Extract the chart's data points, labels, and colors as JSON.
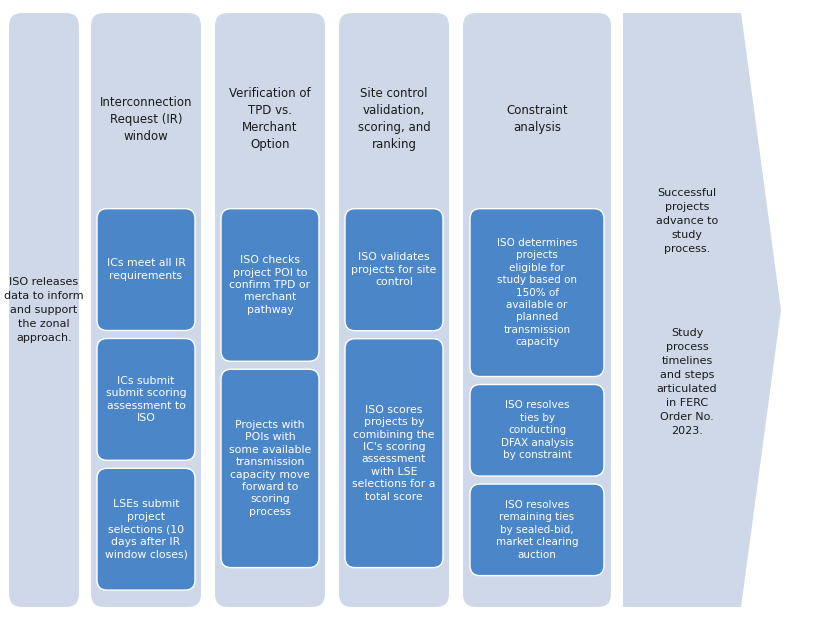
{
  "bg_color": "#ffffff",
  "col_bg_color": "#cfd8e8",
  "box_color": "#4a86c8",
  "arrow_color": "#cfd8e8",
  "text_dark": "#1a1a1a",
  "text_white": "#ffffff",
  "left_text": "ISO releases\ndata to inform\nand support\nthe zonal\napproach.",
  "right_text_line1": "Successful\nprojects\nadvance to\nstudy\nprocess.",
  "right_text_line2": "Study\nprocess\ntimelines\nand steps\narticulated\nin FERC\nOrder No.\n2023.",
  "headers": [
    "Interconnection\nRequest (IR)\nwindow",
    "Verification of\nTPD vs.\nMerchant\nOption",
    "Site control\nvalidation,\nscoring, and\nranking",
    "Constraint\nanalysis"
  ],
  "col_boxes": [
    [
      "ICs meet all IR\nrequirements",
      "ICs submit\nsubmit scoring\nassessment to\nISO",
      "LSEs submit\nproject\nselections (10\ndays after IR\nwindow closes)"
    ],
    [
      "ISO checks\nproject POI to\nconfirm TPD or\nmerchant\npathway",
      "Projects with\nPOIs with\nsome available\ntransmission\ncapacity move\nforward to\nscoring\nprocess"
    ],
    [
      "ISO validates\nprojects for site\ncontrol",
      "ISO scores\nprojects by\ncomibining the\nIC's scoring\nassessment\nwith LSE\nselections for a\ntotal score"
    ],
    [
      "ISO determines\nprojects\neligible for\nstudy based on\n150% of\navailable or\nplanned\ntransmission\ncapacity",
      "ISO resolves\nties by\nconducting\nDFAX analysis\nby constraint",
      "ISO resolves\nremaining ties\nby sealed-bid,\nmarket clearing\nauction"
    ]
  ]
}
